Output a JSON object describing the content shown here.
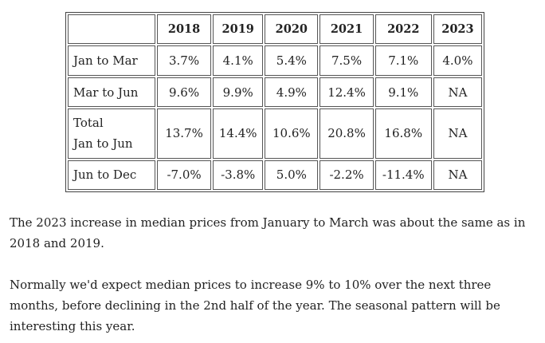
{
  "table": {
    "header": {
      "corner": "",
      "years": [
        "2018",
        "2019",
        "2020",
        "2021",
        "2022",
        "2023"
      ]
    },
    "rows": [
      {
        "label_line1": "Jan to Mar",
        "label_line2": "",
        "values": [
          "3.7%",
          "4.1%",
          "5.4%",
          "7.5%",
          "7.1%",
          "4.0%"
        ]
      },
      {
        "label_line1": "Mar to Jun",
        "label_line2": "",
        "values": [
          "9.6%",
          "9.9%",
          "4.9%",
          "12.4%",
          "9.1%",
          "NA"
        ]
      },
      {
        "label_line1": "Total",
        "label_line2": "Jan to Jun",
        "values": [
          "13.7%",
          "14.4%",
          "10.6%",
          "20.8%",
          "16.8%",
          "NA"
        ]
      },
      {
        "label_line1": "Jun to Dec",
        "label_line2": "",
        "values": [
          "-7.0%",
          "-3.8%",
          "5.0%",
          "-2.2%",
          "-11.4%",
          "NA"
        ]
      }
    ]
  },
  "paragraphs": [
    "The 2023 increase in median prices from January to March was about the same as in 2018 and 2019.",
    "Normally we'd expect median prices to increase 9% to 10% over the next three months, before declining in the 2nd half of the year.  The seasonal pattern will be interesting this year."
  ]
}
